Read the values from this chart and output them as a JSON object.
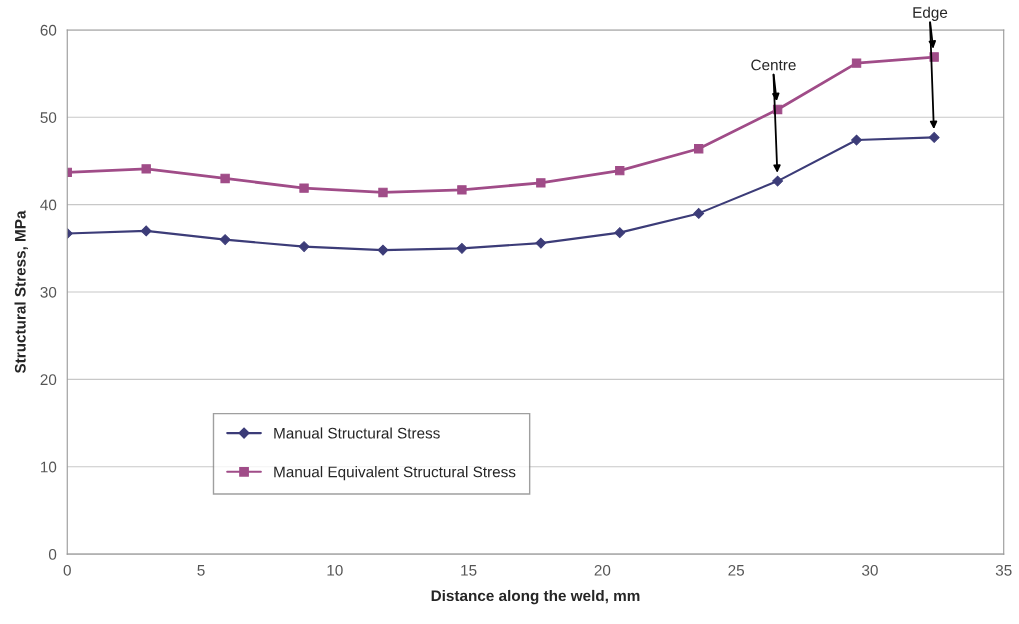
{
  "chart_data": {
    "type": "line",
    "xlabel": "Distance along the weld, mm",
    "ylabel": "Structural Stress, MPa",
    "x": [
      0,
      2.95,
      5.9,
      8.85,
      11.8,
      14.75,
      17.7,
      20.65,
      23.6,
      26.55,
      29.5,
      32.4
    ],
    "series": [
      {
        "name": "Manual Structural Stress",
        "color": "#3c3c78",
        "marker": "diamond",
        "values": [
          36.7,
          37.0,
          36.0,
          35.2,
          34.8,
          35.0,
          35.6,
          36.8,
          39.0,
          42.7,
          47.4,
          47.7
        ]
      },
      {
        "name": "Manual Equivalent Structural Stress",
        "color": "#a04c88",
        "marker": "square",
        "values": [
          43.7,
          44.1,
          43.0,
          41.9,
          41.4,
          41.7,
          42.5,
          43.9,
          46.4,
          50.9,
          56.2,
          56.9
        ]
      }
    ],
    "xlim": [
      0,
      35
    ],
    "xticks": [
      0,
      5,
      10,
      15,
      20,
      25,
      30,
      35
    ],
    "ylim": [
      0,
      60
    ],
    "yticks": [
      0,
      10,
      20,
      30,
      40,
      50,
      60
    ],
    "grid": "y",
    "legend": "bottom left",
    "line_style": "solid",
    "annotations": [
      {
        "text": "Centre",
        "x": 26.55,
        "y": 50.9
      },
      {
        "text": "Edge",
        "x": 32.4,
        "y": 56.9
      }
    ]
  }
}
